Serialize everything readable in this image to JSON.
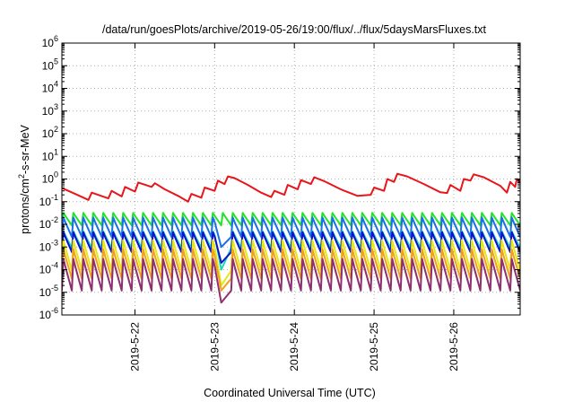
{
  "chart_data": {
    "type": "line",
    "title": "/data/run/goesPlots/archive/2019-05-26/19:00/flux/../flux/5daysMarsFluxes.txt",
    "xlabel": "Coordinated Universal Time (UTC)",
    "ylabel_main": "protons/cm",
    "ylabel_sup": "2",
    "ylabel_tail": "-s-sr-MeV",
    "x_range": [
      "2019-05-21T02:00",
      "2019-05-26T20:00"
    ],
    "x_ticks": [
      "2019-5-22",
      "2019-5-23",
      "2019-5-24",
      "2019-5-25",
      "2019-5-26"
    ],
    "y_scale": "log",
    "y_range": [
      1e-06,
      1000000.0
    ],
    "y_ticks": [
      {
        "base": "10",
        "exp": "-6",
        "value": 1e-06
      },
      {
        "base": "10",
        "exp": "-5",
        "value": 1e-05
      },
      {
        "base": "10",
        "exp": "-4",
        "value": 0.0001
      },
      {
        "base": "10",
        "exp": "-3",
        "value": 0.001
      },
      {
        "base": "10",
        "exp": "-2",
        "value": 0.01
      },
      {
        "base": "10",
        "exp": "-1",
        "value": 0.1
      },
      {
        "base": "10",
        "exp": "0",
        "value": 1
      },
      {
        "base": "10",
        "exp": "1",
        "value": 10
      },
      {
        "base": "10",
        "exp": "2",
        "value": 100
      },
      {
        "base": "10",
        "exp": "3",
        "value": 1000
      },
      {
        "base": "10",
        "exp": "4",
        "value": 10000
      },
      {
        "base": "10",
        "exp": "5",
        "value": 100000
      },
      {
        "base": "10",
        "exp": "6",
        "value": 1000000
      }
    ],
    "grid": true,
    "legend": "none",
    "series": [
      {
        "color": "#e8161b",
        "points": [
          [
            "2019-05-21T02:00",
            0.4
          ],
          [
            "2019-05-21T06:00",
            0.22
          ],
          [
            "2019-05-21T10:00",
            0.12
          ],
          [
            "2019-05-21T11:00",
            0.25
          ],
          [
            "2019-05-21T16:00",
            0.14
          ],
          [
            "2019-05-21T17:00",
            0.3
          ],
          [
            "2019-05-21T20:00",
            0.17
          ],
          [
            "2019-05-21T21:00",
            0.45
          ],
          [
            "2019-05-22T00:00",
            0.28
          ],
          [
            "2019-05-22T01:00",
            0.7
          ],
          [
            "2019-05-22T05:00",
            0.45
          ],
          [
            "2019-05-22T06:00",
            0.65
          ],
          [
            "2019-05-22T09:00",
            0.35
          ],
          [
            "2019-05-22T13:00",
            0.18
          ],
          [
            "2019-05-22T16:00",
            0.1
          ],
          [
            "2019-05-22T17:00",
            0.22
          ],
          [
            "2019-05-22T20:00",
            0.15
          ],
          [
            "2019-05-22T21:00",
            0.42
          ],
          [
            "2019-05-23T00:00",
            0.3
          ],
          [
            "2019-05-23T01:00",
            0.85
          ],
          [
            "2019-05-23T03:00",
            0.6
          ],
          [
            "2019-05-23T04:00",
            1.3
          ],
          [
            "2019-05-23T06:00",
            1.1
          ],
          [
            "2019-05-23T10:00",
            0.55
          ],
          [
            "2019-05-23T14:00",
            0.25
          ],
          [
            "2019-05-23T17:00",
            0.16
          ],
          [
            "2019-05-23T18:00",
            0.3
          ],
          [
            "2019-05-23T21:00",
            0.2
          ],
          [
            "2019-05-23T22:00",
            0.55
          ],
          [
            "2019-05-24T01:00",
            0.35
          ],
          [
            "2019-05-24T02:00",
            0.9
          ],
          [
            "2019-05-24T05:00",
            0.6
          ],
          [
            "2019-05-24T06:00",
            1.2
          ],
          [
            "2019-05-24T09:00",
            0.8
          ],
          [
            "2019-05-24T14:00",
            0.35
          ],
          [
            "2019-05-24T19:00",
            0.18
          ],
          [
            "2019-05-24T23:00",
            0.2
          ],
          [
            "2019-05-25T00:00",
            0.42
          ],
          [
            "2019-05-25T03:00",
            0.3
          ],
          [
            "2019-05-25T04:00",
            1.0
          ],
          [
            "2019-05-25T06:00",
            0.75
          ],
          [
            "2019-05-25T07:00",
            1.7
          ],
          [
            "2019-05-25T10:00",
            1.3
          ],
          [
            "2019-05-25T15:00",
            0.6
          ],
          [
            "2019-05-25T20:00",
            0.26
          ],
          [
            "2019-05-25T22:00",
            0.24
          ],
          [
            "2019-05-25T23:00",
            0.55
          ],
          [
            "2019-05-26T02:00",
            0.3
          ],
          [
            "2019-05-26T03:00",
            1.0
          ],
          [
            "2019-05-26T05:00",
            0.85
          ],
          [
            "2019-05-26T06:00",
            1.6
          ],
          [
            "2019-05-26T09:00",
            1.2
          ],
          [
            "2019-05-26T14:00",
            0.5
          ],
          [
            "2019-05-26T16:00",
            0.25
          ],
          [
            "2019-05-26T17:00",
            0.75
          ],
          [
            "2019-05-26T18:30",
            0.45
          ],
          [
            "2019-05-26T19:00",
            1.0
          ],
          [
            "2019-05-26T20:00",
            0.7
          ]
        ]
      },
      {
        "color": "#22e22a",
        "base": 0.009,
        "peak": 0.032,
        "dip": null
      },
      {
        "color": "#1a6ee8",
        "base": 0.0028,
        "peak": 0.02,
        "dip": 0.001
      },
      {
        "color": "#19d8b8",
        "base": 0.0009,
        "peak": 0.005,
        "dip": 0.0001
      },
      {
        "color": "#1010d0",
        "base": 0.0006,
        "peak": 0.0045,
        "dip": 0.0002
      },
      {
        "color": "#e6e61a",
        "base": 9e-05,
        "peak": 0.002,
        "dip": 2e-05
      },
      {
        "color": "#f0a21a",
        "base": 4e-05,
        "peak": 0.0008,
        "dip": 1.2e-05
      },
      {
        "color": "#8e3070",
        "base": 1.2e-05,
        "peak": 0.0003,
        "dip": 3.5e-06
      }
    ]
  }
}
